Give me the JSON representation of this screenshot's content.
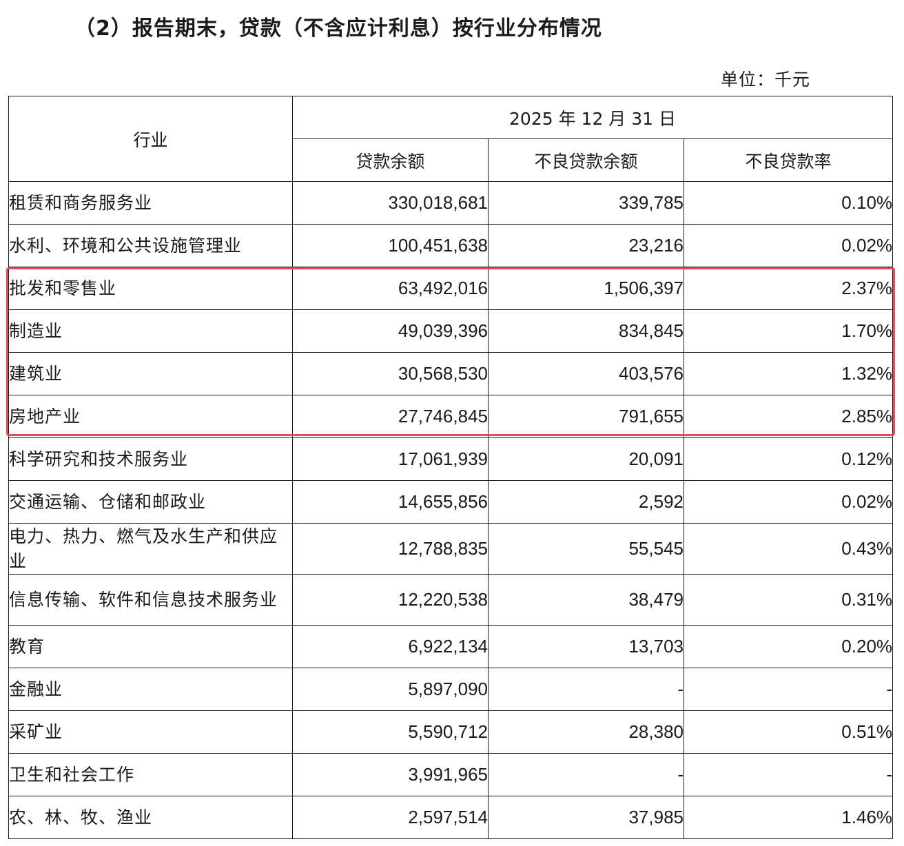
{
  "title": "（2）报告期末，贷款（不含应计利息）按行业分布情况",
  "unit": "单位：千元",
  "header": {
    "industry": "行业",
    "date": "2025 年 12 月 31 日",
    "loan_balance": "贷款余额",
    "npl_balance": "不良贷款余额",
    "npl_ratio": "不良贷款率"
  },
  "rows": [
    {
      "industry": "租赁和商务服务业",
      "loan": "330,018,681",
      "npl": "339,785",
      "ratio": "0.10%"
    },
    {
      "industry": "水利、环境和公共设施管理业",
      "loan": "100,451,638",
      "npl": "23,216",
      "ratio": "0.02%"
    },
    {
      "industry": "批发和零售业",
      "loan": "63,492,016",
      "npl": "1,506,397",
      "ratio": "2.37%"
    },
    {
      "industry": "制造业",
      "loan": "49,039,396",
      "npl": "834,845",
      "ratio": "1.70%"
    },
    {
      "industry": "建筑业",
      "loan": "30,568,530",
      "npl": "403,576",
      "ratio": "1.32%"
    },
    {
      "industry": "房地产业",
      "loan": "27,746,845",
      "npl": "791,655",
      "ratio": "2.85%"
    },
    {
      "industry": "科学研究和技术服务业",
      "loan": "17,061,939",
      "npl": "20,091",
      "ratio": "0.12%"
    },
    {
      "industry": "交通运输、仓储和邮政业",
      "loan": "14,655,856",
      "npl": "2,592",
      "ratio": "0.02%"
    },
    {
      "industry": "电力、热力、燃气及水生产和供应业",
      "loan": "12,788,835",
      "npl": "55,545",
      "ratio": "0.43%"
    },
    {
      "industry": "信息传输、软件和信息技术服务业",
      "loan": "12,220,538",
      "npl": "38,479",
      "ratio": "0.31%"
    },
    {
      "industry": "教育",
      "loan": "6,922,134",
      "npl": "13,703",
      "ratio": "0.20%"
    },
    {
      "industry": "金融业",
      "loan": "5,897,090",
      "npl": "-",
      "ratio": "-"
    },
    {
      "industry": "采矿业",
      "loan": "5,590,712",
      "npl": "28,380",
      "ratio": "0.51%"
    },
    {
      "industry": "卫生和社会工作",
      "loan": "3,991,965",
      "npl": "-",
      "ratio": "-"
    },
    {
      "industry": "农、林、牧、渔业",
      "loan": "2,597,514",
      "npl": "37,985",
      "ratio": "1.46%"
    }
  ],
  "highlight_color": "#e34b5a"
}
